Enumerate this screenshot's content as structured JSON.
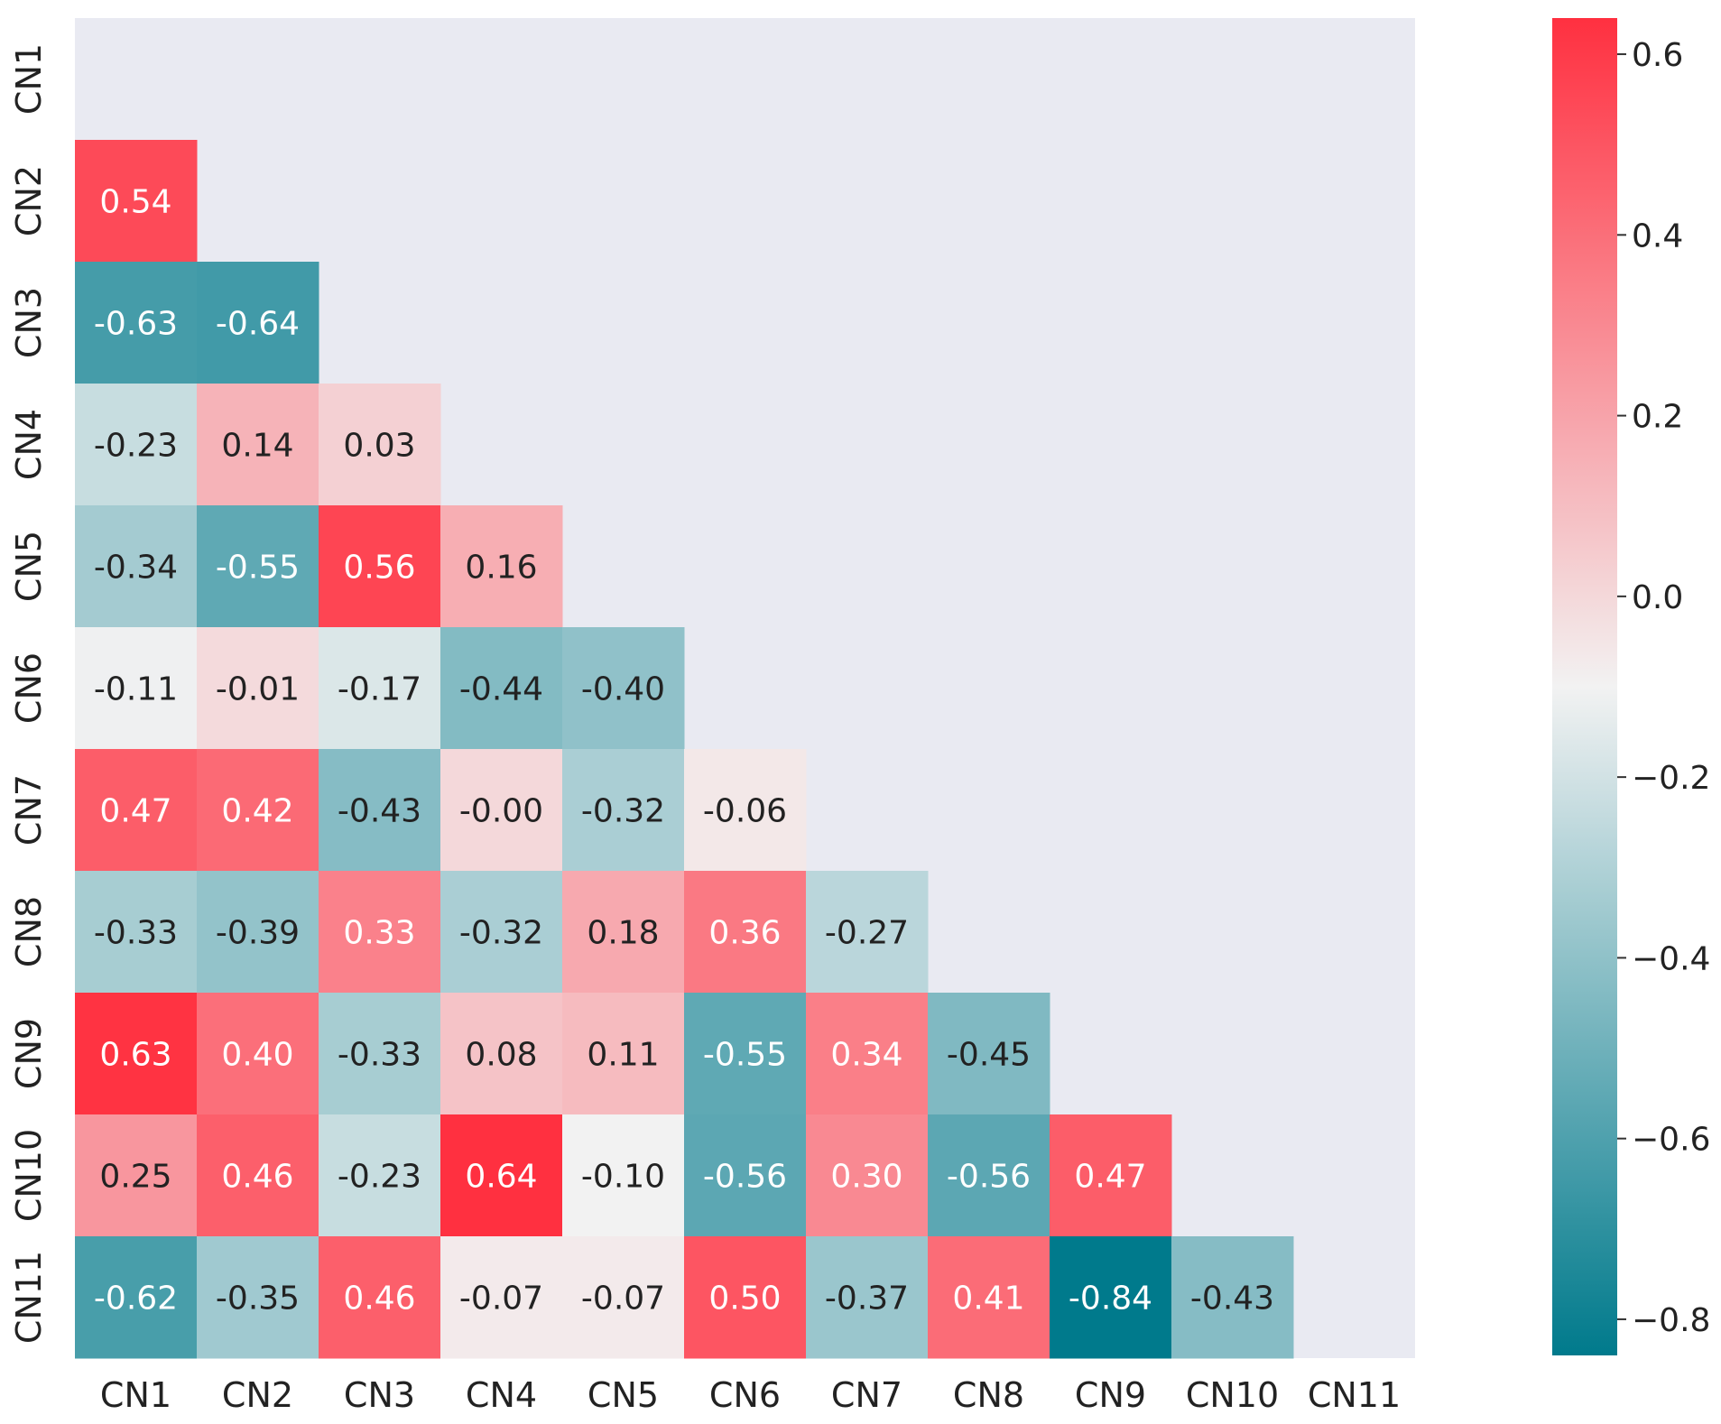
{
  "chart_data": {
    "type": "heatmap",
    "title": "",
    "xlabel": "",
    "ylabel": "",
    "variables": [
      "CN1",
      "CN2",
      "CN3",
      "CN4",
      "CN5",
      "CN6",
      "CN7",
      "CN8",
      "CN9",
      "CN10",
      "CN11"
    ],
    "mask": "upper-triangle-including-diagonal",
    "rows": [
      {
        "name": "CN1",
        "values": []
      },
      {
        "name": "CN2",
        "values": [
          0.54
        ]
      },
      {
        "name": "CN3",
        "values": [
          -0.63,
          -0.64
        ]
      },
      {
        "name": "CN4",
        "values": [
          -0.23,
          0.14,
          0.03
        ]
      },
      {
        "name": "CN5",
        "values": [
          -0.34,
          -0.55,
          0.56,
          0.16
        ]
      },
      {
        "name": "CN6",
        "values": [
          -0.11,
          -0.01,
          -0.17,
          -0.44,
          -0.4
        ]
      },
      {
        "name": "CN7",
        "values": [
          0.47,
          0.42,
          -0.43,
          -0.0,
          -0.32,
          -0.06
        ]
      },
      {
        "name": "CN8",
        "values": [
          -0.33,
          -0.39,
          0.33,
          -0.32,
          0.18,
          0.36,
          -0.27
        ]
      },
      {
        "name": "CN9",
        "values": [
          0.63,
          0.4,
          -0.33,
          0.08,
          0.11,
          -0.55,
          0.34,
          -0.45
        ]
      },
      {
        "name": "CN10",
        "values": [
          0.25,
          0.46,
          -0.23,
          0.64,
          -0.1,
          -0.56,
          0.3,
          -0.56,
          0.47
        ]
      },
      {
        "name": "CN11",
        "values": [
          -0.62,
          -0.35,
          0.46,
          -0.07,
          -0.07,
          0.5,
          -0.37,
          0.41,
          -0.84,
          -0.43
        ]
      }
    ],
    "labels": [
      [],
      [
        "0.54"
      ],
      [
        "-0.63",
        "-0.64"
      ],
      [
        "-0.23",
        "0.14",
        "0.03"
      ],
      [
        "-0.34",
        "-0.55",
        "0.56",
        "0.16"
      ],
      [
        "-0.11",
        "-0.01",
        "-0.17",
        "-0.44",
        "-0.40"
      ],
      [
        "0.47",
        "0.42",
        "-0.43",
        "-0.00",
        "-0.32",
        "-0.06"
      ],
      [
        "-0.33",
        "-0.39",
        "0.33",
        "-0.32",
        "0.18",
        "0.36",
        "-0.27"
      ],
      [
        "0.63",
        "0.40",
        "-0.33",
        "0.08",
        "0.11",
        "-0.55",
        "0.34",
        "-0.45"
      ],
      [
        "0.25",
        "0.46",
        "-0.23",
        "0.64",
        "-0.10",
        "-0.56",
        "0.30",
        "-0.56",
        "0.47"
      ],
      [
        "-0.62",
        "-0.35",
        "0.46",
        "-0.07",
        "-0.07",
        "0.50",
        "-0.37",
        "0.41",
        "-0.84",
        "-0.43"
      ]
    ],
    "colorbar": {
      "min": -0.84,
      "max": 0.64,
      "ticks": [
        0.6,
        0.4,
        0.2,
        0.0,
        -0.2,
        -0.4,
        -0.6,
        -0.8
      ],
      "tick_labels": [
        "0.6",
        "0.4",
        "0.2",
        "0.0",
        "−0.2",
        "−0.4",
        "−0.6",
        "−0.8"
      ],
      "low_color": "#007A8C",
      "mid_color": "#F2F2F2",
      "high_color": "#FF3040"
    },
    "background_color": "#E9EAF2"
  }
}
